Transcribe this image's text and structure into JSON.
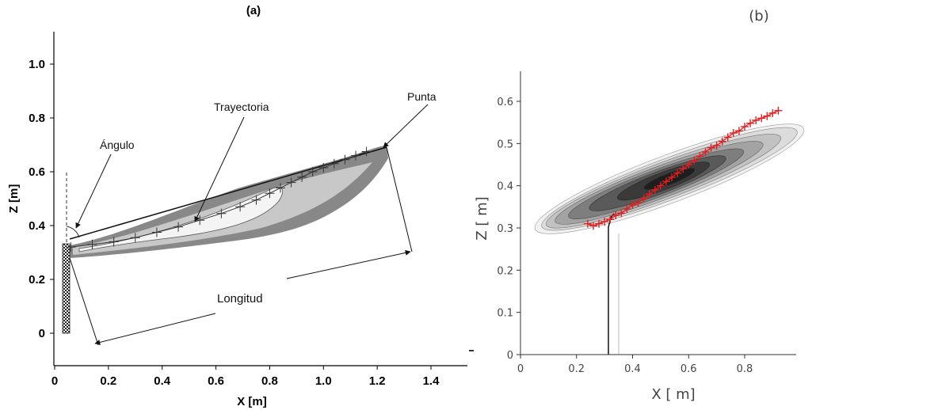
{
  "chart_data": [
    {
      "type": "scatter",
      "panel_label": "(a)",
      "xlabel": "X [m]",
      "ylabel": "Z [m]",
      "xlim": [
        0,
        1.55
      ],
      "ylim": [
        -0.12,
        1.12
      ],
      "xticks": [
        {
          "v": 0,
          "label": "0"
        },
        {
          "v": 0.2,
          "label": "0.2"
        },
        {
          "v": 0.4,
          "label": "0.4"
        },
        {
          "v": 0.6,
          "label": "0.6"
        },
        {
          "v": 0.8,
          "label": "0.8"
        },
        {
          "v": 1.0,
          "label": "1.0"
        },
        {
          "v": 1.2,
          "label": "1.2"
        },
        {
          "v": 1.4,
          "label": "1.4"
        }
      ],
      "yticks": [
        {
          "v": 0,
          "label": "0"
        },
        {
          "v": 0.2,
          "label": "0.2"
        },
        {
          "v": 0.4,
          "label": "0.4"
        },
        {
          "v": 0.6,
          "label": "0.6"
        },
        {
          "v": 0.8,
          "label": "0.8"
        },
        {
          "v": 1.0,
          "label": "1.0"
        }
      ],
      "trajectory": {
        "x": [
          0.06,
          0.14,
          0.22,
          0.3,
          0.38,
          0.46,
          0.54,
          0.62,
          0.69,
          0.75,
          0.8,
          0.84,
          0.88,
          0.92,
          0.96,
          1.0,
          1.04,
          1.08,
          1.12,
          1.16
        ],
        "y": [
          0.32,
          0.33,
          0.34,
          0.355,
          0.375,
          0.395,
          0.42,
          0.445,
          0.47,
          0.495,
          0.52,
          0.54,
          0.56,
          0.58,
          0.6,
          0.615,
          0.63,
          0.645,
          0.66,
          0.675
        ]
      },
      "annotations": [
        {
          "text": "Ángulo"
        },
        {
          "text": "Trayectoria"
        },
        {
          "text": "Punta"
        },
        {
          "text": "Longitud"
        }
      ],
      "grid": false
    },
    {
      "type": "scatter",
      "panel_label": "(b)",
      "xlabel": "X [ m]",
      "ylabel": "Z [ m]",
      "xlim": [
        0,
        0.95
      ],
      "ylim": [
        0,
        0.64
      ],
      "xticks": [
        {
          "v": 0,
          "label": "0"
        },
        {
          "v": 0.2,
          "label": "0.2"
        },
        {
          "v": 0.4,
          "label": "0.4"
        },
        {
          "v": 0.6,
          "label": "0.6"
        },
        {
          "v": 0.8,
          "label": "0.8"
        }
      ],
      "yticks": [
        {
          "v": 0,
          "label": "0"
        },
        {
          "v": 0.1,
          "label": "0.1"
        },
        {
          "v": 0.2,
          "label": "0.2"
        },
        {
          "v": 0.3,
          "label": "0.3"
        },
        {
          "v": 0.4,
          "label": "0.4"
        },
        {
          "v": 0.5,
          "label": "0.5"
        },
        {
          "v": 0.6,
          "label": "0.6"
        }
      ],
      "trajectory": {
        "x": [
          0.24,
          0.26,
          0.28,
          0.3,
          0.32,
          0.34,
          0.36,
          0.38,
          0.4,
          0.42,
          0.44,
          0.46,
          0.48,
          0.5,
          0.52,
          0.54,
          0.56,
          0.58,
          0.6,
          0.62,
          0.64,
          0.66,
          0.68,
          0.7,
          0.72,
          0.74,
          0.76,
          0.78,
          0.8,
          0.82,
          0.84,
          0.86,
          0.88,
          0.9,
          0.92
        ],
        "y": [
          0.31,
          0.305,
          0.31,
          0.315,
          0.32,
          0.33,
          0.335,
          0.345,
          0.355,
          0.36,
          0.37,
          0.38,
          0.39,
          0.4,
          0.41,
          0.42,
          0.43,
          0.44,
          0.45,
          0.46,
          0.47,
          0.48,
          0.49,
          0.495,
          0.505,
          0.515,
          0.525,
          0.53,
          0.54,
          0.548,
          0.555,
          0.56,
          0.565,
          0.572,
          0.578
        ]
      },
      "trajectory_color": "#e02020",
      "grid": false
    }
  ]
}
